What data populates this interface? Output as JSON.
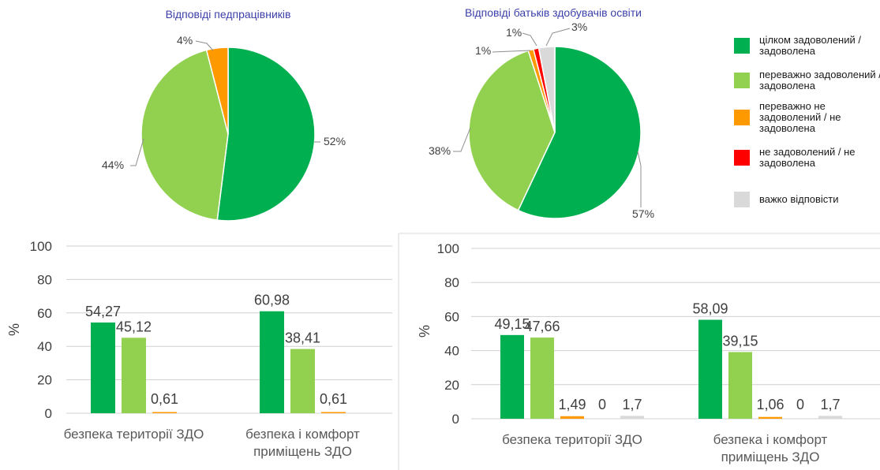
{
  "colors": {
    "fully_satisfied": "#00b050",
    "mostly_satisfied": "#92d050",
    "mostly_not_satisfied": "#ff9900",
    "not_satisfied": "#ff0000",
    "hard_to_answer": "#d9d9d9"
  },
  "legend": [
    {
      "key": "fully_satisfied",
      "label_lines": [
        "цілком задоволений /",
        "задоволена"
      ]
    },
    {
      "key": "mostly_satisfied",
      "label_lines": [
        "переважно задоволений /",
        "задоволена"
      ]
    },
    {
      "key": "mostly_not_satisfied",
      "label_lines": [
        "переважно не",
        "задоволений / не",
        "задоволена"
      ]
    },
    {
      "key": "not_satisfied",
      "label_lines": [
        "не задоволений / не",
        "задоволена"
      ]
    },
    {
      "key": "hard_to_answer",
      "label_lines": [
        "важко відповісти"
      ]
    }
  ],
  "chart_data": [
    {
      "type": "pie",
      "title": "Відповіді педпрацівників",
      "slices": [
        {
          "key": "fully_satisfied",
          "value": 52,
          "label": "52%"
        },
        {
          "key": "mostly_satisfied",
          "value": 44,
          "label": "44%"
        },
        {
          "key": "mostly_not_satisfied",
          "value": 4,
          "label": "4%"
        }
      ]
    },
    {
      "type": "pie",
      "title": "Відповіді батьків здобувачів освіти",
      "slices": [
        {
          "key": "fully_satisfied",
          "value": 57,
          "label": "57%"
        },
        {
          "key": "mostly_satisfied",
          "value": 38,
          "label": "38%"
        },
        {
          "key": "mostly_not_satisfied",
          "value": 1,
          "label": "1%"
        },
        {
          "key": "not_satisfied",
          "value": 1,
          "label": "1%"
        },
        {
          "key": "hard_to_answer",
          "value": 3,
          "label": "3%"
        }
      ]
    },
    {
      "type": "bar",
      "ylabel": "%",
      "ylim": [
        0,
        100
      ],
      "yticks": [
        "0",
        "20",
        "40",
        "60",
        "80",
        "100"
      ],
      "categories": [
        [
          "безпека території ЗДО"
        ],
        [
          "безпека і комфорт",
          "приміщень ЗДО"
        ]
      ],
      "series": [
        {
          "key": "fully_satisfied",
          "values": [
            54.27,
            60.98
          ],
          "labels": [
            "54,27",
            "60,98"
          ]
        },
        {
          "key": "mostly_satisfied",
          "values": [
            45.12,
            38.41
          ],
          "labels": [
            "45,12",
            "38,41"
          ]
        },
        {
          "key": "mostly_not_satisfied",
          "values": [
            0.61,
            0.61
          ],
          "labels": [
            "0,61",
            "0,61"
          ]
        }
      ]
    },
    {
      "type": "bar",
      "ylabel": "%",
      "ylim": [
        0,
        100
      ],
      "yticks": [
        "0",
        "20",
        "40",
        "60",
        "80",
        "100"
      ],
      "categories": [
        [
          "безпека території ЗДО"
        ],
        [
          "безпека і комфорт",
          "приміщень ЗДО"
        ]
      ],
      "series": [
        {
          "key": "fully_satisfied",
          "values": [
            49.15,
            58.09
          ],
          "labels": [
            "49,15",
            "58,09"
          ]
        },
        {
          "key": "mostly_satisfied",
          "values": [
            47.66,
            39.15
          ],
          "labels": [
            "47,66",
            "39,15"
          ]
        },
        {
          "key": "mostly_not_satisfied",
          "values": [
            1.49,
            1.06
          ],
          "labels": [
            "1,49",
            "1,06"
          ]
        },
        {
          "key": "not_satisfied",
          "values": [
            0,
            0
          ],
          "labels": [
            "0",
            "0"
          ]
        },
        {
          "key": "hard_to_answer",
          "values": [
            1.7,
            1.7
          ],
          "labels": [
            "1,7",
            "1,7"
          ]
        }
      ]
    }
  ]
}
